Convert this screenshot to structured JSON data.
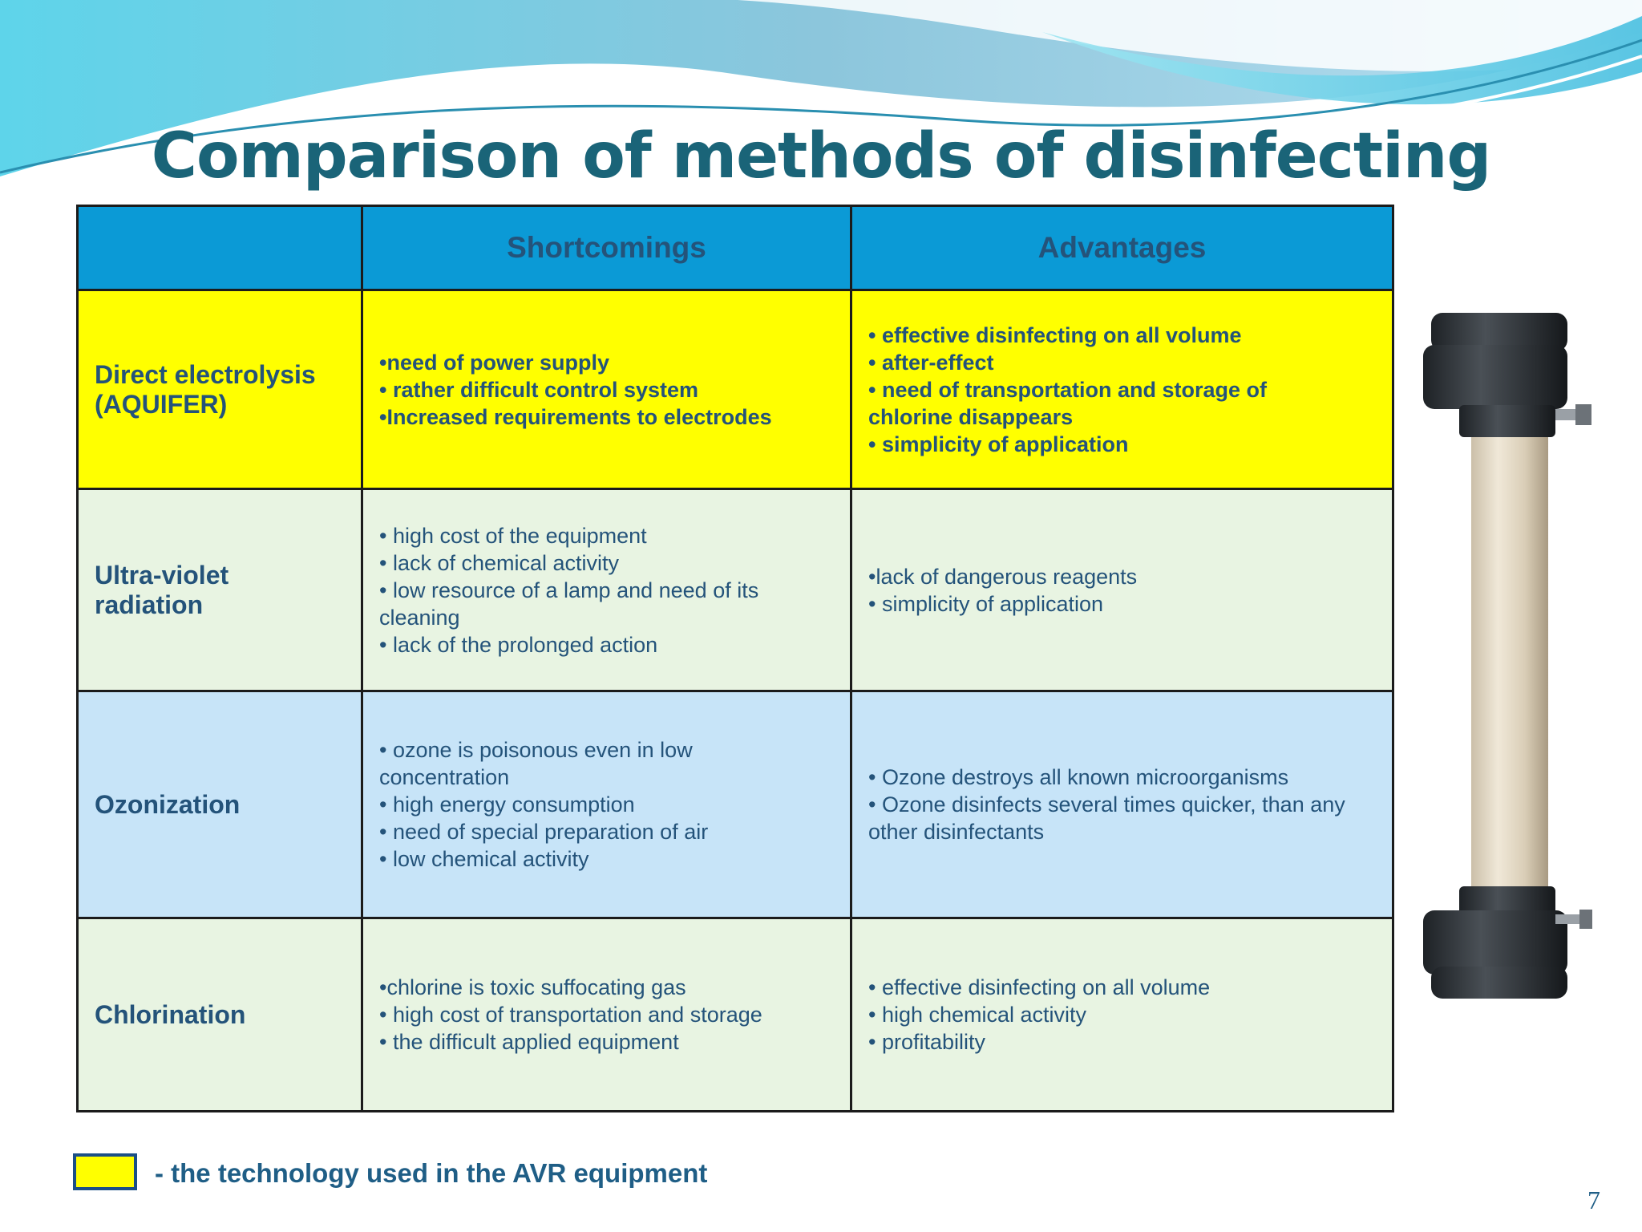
{
  "title": "Comparison of methods of disinfecting",
  "table": {
    "headers": [
      "",
      "Shortcomings",
      "Advantages"
    ],
    "rows": [
      {
        "method": [
          "Direct electrolysis",
          "(AQUIFER)"
        ],
        "shortcomings": [
          "•need of power supply",
          "•  rather difficult control system",
          "•Increased requirements to electrodes"
        ],
        "advantages": [
          "• effective disinfecting on all volume",
          "•  after-effect",
          "• need of transportation and storage of",
          "chlorine disappears",
          "•  simplicity of application"
        ],
        "highlight": "#ffff00"
      },
      {
        "method": [
          "Ultra-violet",
          "radiation"
        ],
        "shortcomings": [
          "• high cost of the equipment",
          "• lack of chemical activity",
          "• low resource of a lamp and need of its",
          "cleaning",
          "• lack of the prolonged action"
        ],
        "advantages": [
          "•lack of dangerous reagents",
          "• simplicity of application"
        ],
        "highlight": "#e8f4e2"
      },
      {
        "method": [
          "Ozonization"
        ],
        "shortcomings": [
          "• ozone is poisonous even in low",
          "concentration",
          "• high energy consumption",
          "• need of special preparation of air",
          "• low chemical activity"
        ],
        "advantages": [
          "• Ozone destroys all known microorganisms",
          "• Ozone disinfects several times quicker, than any",
          "other disinfectants"
        ],
        "highlight": "#c7e4f8"
      },
      {
        "method": [
          "Chlorination"
        ],
        "shortcomings": [
          "•chlorine is toxic suffocating gas",
          "• high cost of transportation and storage",
          "• the difficult applied equipment"
        ],
        "advantages": [
          "• effective disinfecting on all volume",
          "• high chemical activity",
          "• profitability"
        ],
        "highlight": "#e8f4e2"
      }
    ]
  },
  "legend": {
    "text": "- the technology used in the AVR equipment",
    "color": "#ffff00"
  },
  "page_number": "7",
  "colors": {
    "title": "#1a6478",
    "header_bg": "#0b9ad6",
    "text": "#1f5e86"
  }
}
